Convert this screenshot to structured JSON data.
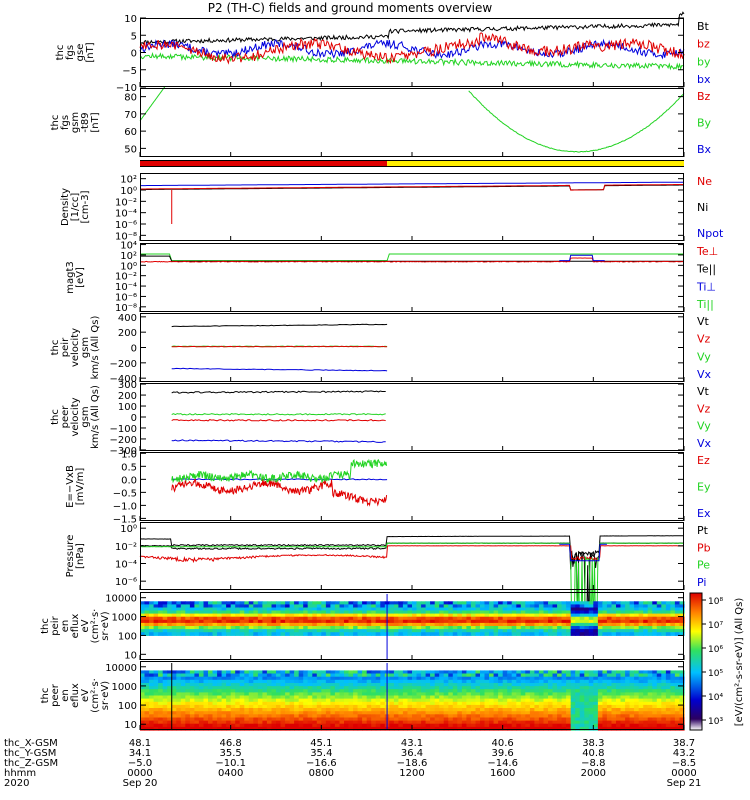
{
  "page": {
    "title": "P2 (TH-C) fields and ground moments overview"
  },
  "colors": {
    "black": "#000000",
    "red": "#e00000",
    "green": "#22d322",
    "blue": "#0000dd",
    "yellow": "#ffee00"
  },
  "panels": [
    {
      "id": "fgs",
      "ylabel": [
        "thc",
        "fgs",
        "gse",
        "[nT]"
      ],
      "ticks": [
        "10",
        "5",
        "0",
        "−5",
        "−10"
      ],
      "legend": [
        {
          "text": "Bt",
          "color": "black"
        },
        {
          "text": "bz",
          "color": "red"
        },
        {
          "text": "by",
          "color": "green"
        },
        {
          "text": "bx",
          "color": "blue"
        }
      ]
    },
    {
      "id": "fgs-gsm",
      "ylabel": [
        "thc",
        "fgs",
        "gsm",
        "-t89",
        "[nT]"
      ],
      "ticks": [
        "80",
        "70",
        "60",
        "50"
      ],
      "legend": [
        {
          "text": "Bz",
          "color": "red"
        },
        {
          "text": "By",
          "color": "green"
        },
        {
          "text": "Bx",
          "color": "blue"
        }
      ]
    },
    {
      "id": "density",
      "ylabel": [
        "Density",
        "[1/cc]",
        "[cm-3]"
      ],
      "ticks": [
        "10²",
        "10⁰",
        "10⁻²",
        "10⁻⁴",
        "10⁻⁶",
        "10⁻⁸"
      ],
      "legend": [
        {
          "text": "Ne",
          "color": "red"
        },
        {
          "text": "Ni",
          "color": "black"
        },
        {
          "text": "Npot",
          "color": "blue"
        }
      ]
    },
    {
      "id": "temperature",
      "ylabel": [
        "magt3",
        "[eV]"
      ],
      "ticks": [
        "10⁴",
        "10²",
        "10⁰",
        "10⁻²",
        "10⁻⁴",
        "10⁻⁶",
        "10⁻⁸"
      ],
      "legend": [
        {
          "text": "Te⊥",
          "color": "red"
        },
        {
          "text": "Te||",
          "color": "black"
        },
        {
          "text": "Ti⊥",
          "color": "blue"
        },
        {
          "text": "Ti||",
          "color": "green"
        }
      ]
    },
    {
      "id": "peir-velocity",
      "ylabel": [
        "thc",
        "peir",
        "velocity",
        "gsm",
        "km/s (All Qs)"
      ],
      "ticks": [
        "400",
        "200",
        "0",
        "−200",
        "−400"
      ],
      "legend": [
        {
          "text": "Vt",
          "color": "black"
        },
        {
          "text": "Vz",
          "color": "red"
        },
        {
          "text": "Vy",
          "color": "green"
        },
        {
          "text": "Vx",
          "color": "blue"
        }
      ]
    },
    {
      "id": "peer-velocity",
      "ylabel": [
        "thc",
        "peer",
        "velocity",
        "gsm",
        "km/s (All Qs)"
      ],
      "ticks": [
        "300",
        "200",
        "100",
        "0",
        "−100",
        "−200",
        "−300"
      ],
      "legend": [
        {
          "text": "Vt",
          "color": "black"
        },
        {
          "text": "Vz",
          "color": "red"
        },
        {
          "text": "Vy",
          "color": "green"
        },
        {
          "text": "Vx",
          "color": "blue"
        }
      ]
    },
    {
      "id": "efield",
      "ylabel": [
        "E=−VxB",
        "[mV/m]"
      ],
      "ticks": [
        "1.0",
        "0.5",
        "0.0",
        "−0.5",
        "−1.0",
        "−1.5"
      ],
      "legend": [
        {
          "text": "Ez",
          "color": "red"
        },
        {
          "text": "Ey",
          "color": "green"
        },
        {
          "text": "Ex",
          "color": "blue"
        }
      ]
    },
    {
      "id": "pressure",
      "ylabel": [
        "Pressure",
        "[nPa]"
      ],
      "ticks": [
        "10⁰",
        "10⁻²",
        "10⁻⁴",
        "10⁻⁶"
      ],
      "legend": [
        {
          "text": "Pt",
          "color": "black"
        },
        {
          "text": "Pb",
          "color": "red"
        },
        {
          "text": "Pe",
          "color": "green"
        },
        {
          "text": "Pi",
          "color": "blue"
        }
      ]
    },
    {
      "id": "peir-eflux",
      "ylabel": [
        "thc",
        "peir",
        "en",
        "eflux",
        "eV",
        "(cm²·s·",
        "sr·eV)"
      ],
      "ticks": [
        "10000",
        "1000",
        "100",
        "10"
      ]
    },
    {
      "id": "peer-eflux",
      "ylabel": [
        "thc",
        "peer",
        "en",
        "eflux",
        "eV",
        "(cm²·s·",
        "sr·eV)"
      ],
      "ticks": [
        "10000",
        "1000",
        "100",
        "10"
      ]
    }
  ],
  "colorbar": {
    "ticks": [
      "10⁸",
      "10⁷",
      "10⁶",
      "10⁵",
      "10⁴",
      "10³"
    ],
    "label": "[eV/(cm²-s-sr-eV)] (All Qs)"
  },
  "x_axis": {
    "row_labels": [
      "thc_X-GSM",
      "thc_Y-GSM",
      "thc_Z-GSM",
      "hhmm",
      "2020"
    ],
    "columns": [
      {
        "x": "48.1",
        "y": "34.1",
        "z": "−5.0",
        "t": "0000",
        "d": "Sep 20"
      },
      {
        "x": "46.8",
        "y": "35.5",
        "z": "−10.1",
        "t": "0400",
        "d": ""
      },
      {
        "x": "45.1",
        "y": "35.4",
        "z": "−16.6",
        "t": "0800",
        "d": ""
      },
      {
        "x": "43.1",
        "y": "36.4",
        "z": "−18.6",
        "t": "1200",
        "d": ""
      },
      {
        "x": "40.6",
        "y": "39.6",
        "z": "−14.6",
        "t": "1600",
        "d": ""
      },
      {
        "x": "38.3",
        "y": "40.8",
        "z": "−8.8",
        "t": "2000",
        "d": ""
      },
      {
        "x": "38.7",
        "y": "43.2",
        "z": "−8.5",
        "t": "0000",
        "d": "Sep 21"
      }
    ]
  },
  "chart_data": {
    "type": "line",
    "x": [
      "0000",
      "0400",
      "0800",
      "1200",
      "1600",
      "2000",
      "0000"
    ],
    "panels": [
      {
        "id": "fgs",
        "ylim": [
          -10,
          10
        ],
        "series": [
          {
            "name": "Bt",
            "values": [
              4,
              3,
              3,
              5,
              5,
              6,
              8
            ]
          },
          {
            "name": "bz",
            "values": [
              1,
              1,
              -1,
              1,
              1,
              1,
              3
            ]
          },
          {
            "name": "by",
            "values": [
              -1,
              -1,
              -2,
              -2,
              -4,
              -4,
              -5
            ]
          },
          {
            "name": "bx",
            "values": [
              2,
              0,
              1,
              1,
              1,
              -1,
              -2
            ]
          }
        ]
      },
      {
        "id": "fgs-gsm",
        "ylim": [
          45,
          85
        ],
        "series": [
          {
            "name": "By",
            "values": [
              66,
              85,
              null,
              null,
              70,
              48,
              76
            ]
          }
        ]
      },
      {
        "id": "density",
        "scale": "log",
        "ylim": [
          1e-09,
          1000.0
        ],
        "series": [
          {
            "name": "Ne",
            "values": [
              2,
              3,
              3,
              5,
              6,
              4,
              10
            ]
          },
          {
            "name": "Ni",
            "values": [
              2,
              3,
              3,
              5,
              6,
              3,
              8
            ]
          },
          {
            "name": "Npot",
            "values": [
              6,
              7,
              7,
              10,
              15,
              10,
              20
            ]
          }
        ]
      },
      {
        "id": "temperature",
        "scale": "log",
        "ylim": [
          1e-09,
          10000.0
        ],
        "series": [
          {
            "name": "Te⊥",
            "values": [
              20,
              15,
              15,
              20,
              25,
              40,
              30
            ]
          },
          {
            "name": "Ti||",
            "values": [
              100,
              20,
              20,
              200,
              200,
              300,
              300
            ]
          }
        ]
      },
      {
        "id": "peir-velocity",
        "ylim": [
          -450,
          450
        ],
        "series": [
          {
            "name": "Vt",
            "values": [
              null,
              270,
              280,
              290,
              null,
              null,
              null
            ]
          },
          {
            "name": "Vz",
            "values": [
              null,
              10,
              10,
              20,
              null,
              null,
              null
            ]
          },
          {
            "name": "Vy",
            "values": [
              null,
              15,
              15,
              25,
              null,
              null,
              null
            ]
          },
          {
            "name": "Vx",
            "values": [
              null,
              -270,
              -280,
              -290,
              null,
              null,
              null
            ]
          }
        ]
      },
      {
        "id": "peer-velocity",
        "ylim": [
          -310,
          310
        ],
        "series": [
          {
            "name": "Vt",
            "values": [
              null,
              220,
              225,
              230,
              null,
              null,
              null
            ]
          },
          {
            "name": "Vz",
            "values": [
              null,
              -30,
              -30,
              -35,
              null,
              null,
              null
            ]
          },
          {
            "name": "Vy",
            "values": [
              null,
              20,
              20,
              20,
              null,
              null,
              null
            ]
          },
          {
            "name": "Vx",
            "values": [
              null,
              -210,
              -220,
              -225,
              null,
              null,
              null
            ]
          }
        ]
      },
      {
        "id": "efield",
        "ylim": [
          -1.6,
          1.0
        ],
        "series": [
          {
            "name": "Ez",
            "values": [
              null,
              -0.3,
              -0.5,
              -0.8,
              null,
              null,
              null
            ]
          },
          {
            "name": "Ey",
            "values": [
              null,
              0.1,
              0.2,
              0.5,
              null,
              null,
              null
            ]
          },
          {
            "name": "Ex",
            "values": [
              null,
              0.0,
              0.0,
              0.0,
              null,
              null,
              null
            ]
          }
        ]
      },
      {
        "id": "pressure",
        "scale": "log",
        "ylim": [
          1e-07,
          1
        ],
        "series": [
          {
            "name": "Pt",
            "values": [
              0.05,
              0.01,
              0.02,
              0.1,
              0.1,
              0.001,
              0.15
            ]
          },
          {
            "name": "Pb",
            "values": [
              0.005,
              0.002,
              0.002,
              0.02,
              0.02,
              0.001,
              0.03
            ]
          },
          {
            "name": "Pe",
            "values": [
              0.005,
              0.003,
              0.004,
              0.03,
              0.03,
              0.0001,
              0.04
            ]
          }
        ]
      }
    ],
    "spectrograms": [
      {
        "id": "peir-eflux",
        "scale": "log",
        "ylim": [
          5,
          20000
        ],
        "zlim": [
          1000.0,
          100000000.0
        ]
      },
      {
        "id": "peer-eflux",
        "scale": "log",
        "ylim": [
          5,
          20000
        ],
        "zlim": [
          1000.0,
          100000000.0
        ]
      }
    ]
  }
}
